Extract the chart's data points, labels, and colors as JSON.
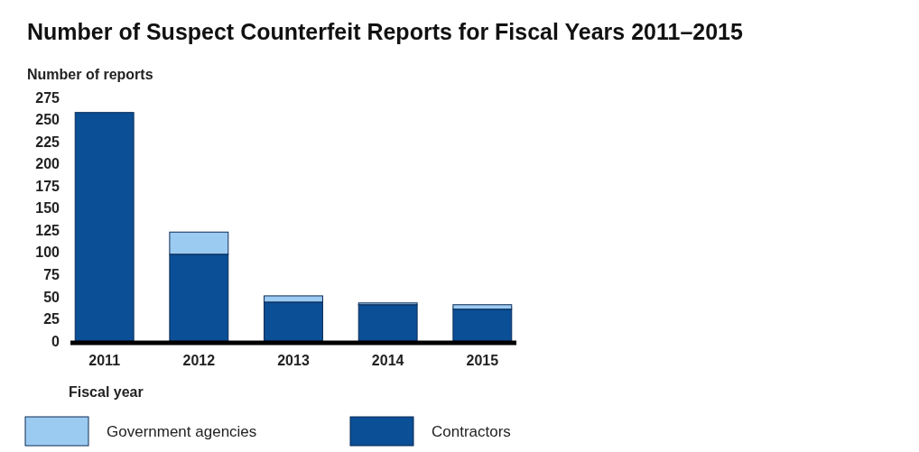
{
  "chart_data": {
    "type": "bar",
    "title": "Number of Suspect Counterfeit Reports for Fiscal Years 2011–2015",
    "ylabel": "Number of reports",
    "xlabel": "Fiscal year",
    "categories": [
      "2011",
      "2012",
      "2013",
      "2014",
      "2015"
    ],
    "stacked": true,
    "series": [
      {
        "name": "Contractors",
        "color": "#0b4f96",
        "values": [
          258,
          98,
          44,
          41,
          36
        ]
      },
      {
        "name": "Government agencies",
        "color": "#9ccbf2",
        "values": [
          0,
          25,
          7,
          2,
          5
        ]
      }
    ],
    "ylim": [
      0,
      275
    ],
    "yticks": [
      0,
      25,
      50,
      75,
      100,
      125,
      150,
      175,
      200,
      225,
      250,
      275
    ],
    "grid": false,
    "legend": "bottom"
  }
}
